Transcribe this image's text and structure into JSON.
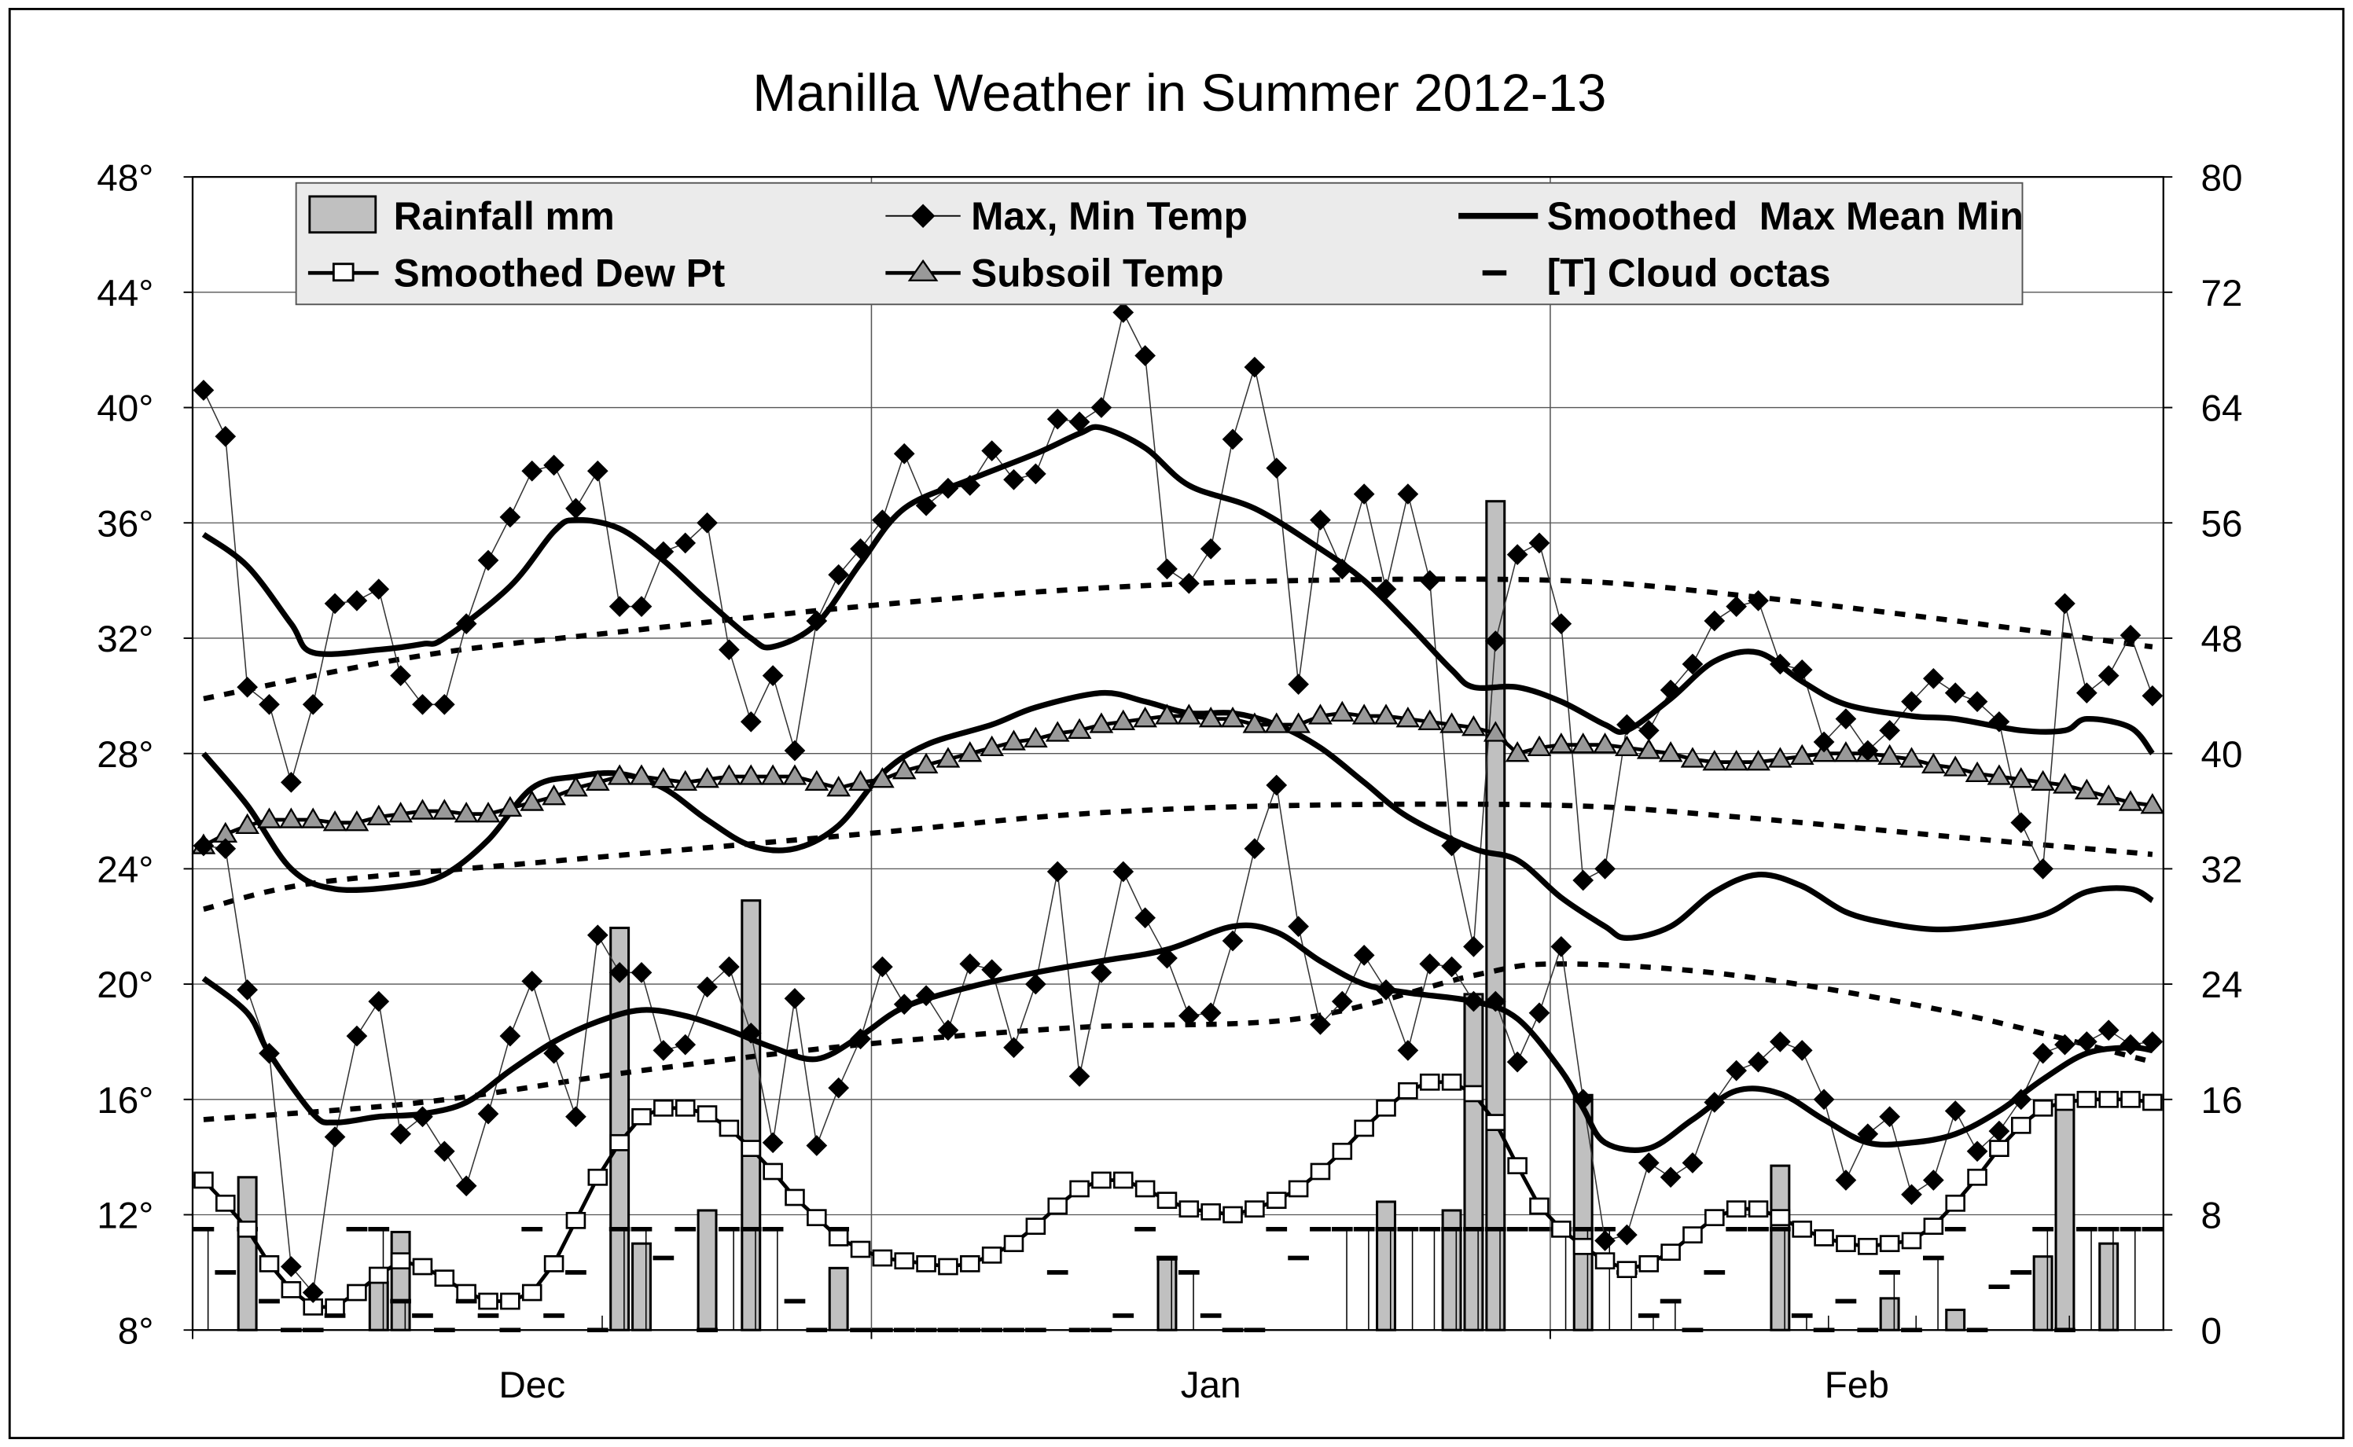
{
  "chart_data": {
    "type": "line",
    "title": "Manilla Weather in Summer 2012-13",
    "left_axis": {
      "ticks": [
        "8°",
        "12°",
        "16°",
        "20°",
        "24°",
        "28°",
        "32°",
        "36°",
        "40°",
        "44°",
        "48°"
      ],
      "values": [
        8,
        12,
        16,
        20,
        24,
        28,
        32,
        36,
        40,
        44,
        48
      ],
      "range": [
        8,
        48
      ]
    },
    "right_axis": {
      "ticks": [
        "0",
        "8",
        "16",
        "24",
        "32",
        "40",
        "48",
        "56",
        "64",
        "72",
        "80"
      ],
      "values": [
        0,
        8,
        16,
        24,
        32,
        40,
        48,
        56,
        64,
        72,
        80
      ],
      "range": [
        0,
        80
      ]
    },
    "x_axis": {
      "months": [
        "Dec",
        "Jan",
        "Feb"
      ],
      "month_start_days": [
        0,
        31,
        62
      ],
      "total_days": 90
    },
    "grid": true,
    "legend": {
      "placement": "top",
      "items": [
        "Rainfall mm",
        "Max, Min Temp",
        "Smoothed  Max Mean Min",
        "Smoothed Dew Pt",
        "Subsoil Temp",
        "[T] Cloud octas"
      ]
    },
    "series": {
      "max_temp": [
        40.6,
        39.0,
        30.3,
        29.7,
        27.0,
        29.7,
        33.2,
        33.3,
        33.7,
        30.7,
        29.7,
        29.7,
        32.5,
        34.7,
        36.2,
        37.8,
        38.0,
        36.5,
        37.8,
        33.1,
        33.1,
        35.0,
        35.3,
        36.0,
        31.6,
        29.1,
        30.7,
        28.1,
        32.6,
        34.2,
        35.1,
        36.1,
        38.4,
        36.6,
        37.2,
        37.3,
        38.5,
        37.5,
        37.7,
        39.6,
        39.5,
        40.0,
        43.3,
        41.8,
        34.4,
        33.9,
        35.1,
        38.9,
        41.4,
        37.9,
        30.4,
        36.1,
        34.4,
        37.0,
        33.7,
        37.0,
        34.0,
        24.8,
        21.3,
        31.9,
        34.9,
        35.3,
        32.5,
        23.6,
        24.0,
        29.0,
        28.8,
        30.2,
        31.1,
        32.6,
        33.1,
        33.3,
        31.1,
        30.9,
        28.4,
        29.2,
        28.1,
        28.8,
        29.8,
        30.6,
        30.1,
        29.8,
        29.1,
        25.6,
        24.0,
        33.2,
        30.1,
        30.7,
        32.1,
        30.0
      ],
      "min_temp": [
        24.8,
        24.7,
        19.8,
        17.6,
        10.2,
        9.3,
        14.7,
        18.2,
        19.4,
        14.8,
        15.4,
        14.2,
        13.0,
        15.5,
        18.2,
        20.1,
        17.6,
        15.4,
        21.7,
        20.4,
        20.4,
        17.7,
        17.9,
        19.9,
        20.6,
        18.3,
        14.5,
        19.5,
        14.4,
        16.4,
        18.1,
        20.6,
        19.3,
        19.6,
        18.4,
        20.7,
        20.5,
        17.8,
        20.0,
        23.9,
        16.8,
        20.4,
        23.9,
        22.3,
        20.9,
        18.9,
        19.0,
        21.5,
        24.7,
        26.9,
        22.0,
        18.6,
        19.4,
        21.0,
        19.8,
        17.7,
        20.7,
        20.6,
        19.4,
        19.4,
        17.3,
        19.0,
        21.3,
        16.0,
        11.1,
        11.3,
        13.8,
        13.3,
        13.8,
        15.9,
        17.0,
        17.3,
        18.0,
        17.7,
        16.0,
        13.2,
        14.8,
        15.4,
        12.7,
        13.2,
        15.6,
        14.2,
        14.9,
        16.0,
        17.6,
        17.9,
        18.0,
        18.4,
        17.9,
        18.0
      ],
      "smoothed_max": [
        [
          0,
          35.6
        ],
        [
          2,
          34.5
        ],
        [
          4,
          32.5
        ],
        [
          5,
          31.5
        ],
        [
          8,
          31.6
        ],
        [
          10,
          31.8
        ],
        [
          11,
          32.0
        ],
        [
          14,
          33.8
        ],
        [
          16,
          35.7
        ],
        [
          17,
          36.1
        ],
        [
          19,
          35.8
        ],
        [
          21,
          34.7
        ],
        [
          23,
          33.3
        ],
        [
          25,
          32.0
        ],
        [
          26,
          31.7
        ],
        [
          28,
          32.5
        ],
        [
          30,
          34.6
        ],
        [
          32,
          36.5
        ],
        [
          35,
          37.5
        ],
        [
          38,
          38.4
        ],
        [
          40,
          39.1
        ],
        [
          41,
          39.3
        ],
        [
          43,
          38.6
        ],
        [
          45,
          37.3
        ],
        [
          48,
          36.5
        ],
        [
          51,
          35.1
        ],
        [
          53,
          34.0
        ],
        [
          55,
          32.5
        ],
        [
          57,
          30.9
        ],
        [
          58,
          30.3
        ],
        [
          60,
          30.3
        ],
        [
          62,
          29.8
        ],
        [
          64,
          29.0
        ],
        [
          65,
          28.8
        ],
        [
          67,
          29.9
        ],
        [
          69,
          31.2
        ],
        [
          71,
          31.5
        ],
        [
          73,
          30.5
        ],
        [
          75,
          29.7
        ],
        [
          78,
          29.3
        ],
        [
          80,
          29.2
        ],
        [
          83,
          28.8
        ],
        [
          85,
          28.8
        ],
        [
          86,
          29.2
        ],
        [
          88,
          28.9
        ],
        [
          89,
          28.0
        ]
      ],
      "smoothed_mean": [
        [
          0,
          28.0
        ],
        [
          2,
          26.2
        ],
        [
          4,
          24.0
        ],
        [
          6,
          23.3
        ],
        [
          9,
          23.4
        ],
        [
          11,
          23.8
        ],
        [
          13,
          25.0
        ],
        [
          15,
          26.8
        ],
        [
          17,
          27.2
        ],
        [
          19,
          27.3
        ],
        [
          21,
          26.8
        ],
        [
          23,
          25.7
        ],
        [
          25,
          24.8
        ],
        [
          27,
          24.7
        ],
        [
          29,
          25.5
        ],
        [
          31,
          27.3
        ],
        [
          33,
          28.3
        ],
        [
          36,
          29.0
        ],
        [
          38,
          29.6
        ],
        [
          41,
          30.1
        ],
        [
          43,
          29.8
        ],
        [
          45,
          29.4
        ],
        [
          47,
          29.4
        ],
        [
          49,
          29.0
        ],
        [
          51,
          28.2
        ],
        [
          53,
          27.0
        ],
        [
          55,
          25.8
        ],
        [
          58,
          24.7
        ],
        [
          60,
          24.3
        ],
        [
          62,
          23.0
        ],
        [
          64,
          22.0
        ],
        [
          65,
          21.6
        ],
        [
          67,
          22.0
        ],
        [
          69,
          23.2
        ],
        [
          71,
          23.8
        ],
        [
          73,
          23.4
        ],
        [
          75,
          22.5
        ],
        [
          77,
          22.1
        ],
        [
          79,
          21.9
        ],
        [
          81,
          22.0
        ],
        [
          84,
          22.4
        ],
        [
          86,
          23.2
        ],
        [
          88,
          23.3
        ],
        [
          89,
          22.9
        ]
      ],
      "smoothed_min": [
        [
          0,
          20.2
        ],
        [
          2,
          19.0
        ],
        [
          3,
          17.6
        ],
        [
          5,
          15.5
        ],
        [
          6,
          15.2
        ],
        [
          8,
          15.4
        ],
        [
          10,
          15.5
        ],
        [
          12,
          15.9
        ],
        [
          14,
          17.0
        ],
        [
          16,
          18.0
        ],
        [
          18,
          18.7
        ],
        [
          20,
          19.1
        ],
        [
          22,
          18.9
        ],
        [
          24,
          18.4
        ],
        [
          26,
          17.8
        ],
        [
          28,
          17.4
        ],
        [
          30,
          18.2
        ],
        [
          32,
          19.2
        ],
        [
          35,
          19.9
        ],
        [
          38,
          20.4
        ],
        [
          41,
          20.8
        ],
        [
          44,
          21.2
        ],
        [
          47,
          22.0
        ],
        [
          49,
          21.8
        ],
        [
          51,
          20.8
        ],
        [
          53,
          20.0
        ],
        [
          55,
          19.7
        ],
        [
          58,
          19.4
        ],
        [
          60,
          18.8
        ],
        [
          62,
          17.0
        ],
        [
          63,
          15.7
        ],
        [
          64,
          14.5
        ],
        [
          66,
          14.3
        ],
        [
          68,
          15.3
        ],
        [
          70,
          16.3
        ],
        [
          72,
          16.2
        ],
        [
          74,
          15.3
        ],
        [
          76,
          14.5
        ],
        [
          78,
          14.5
        ],
        [
          80,
          14.8
        ],
        [
          82,
          15.6
        ],
        [
          84,
          16.7
        ],
        [
          86,
          17.6
        ],
        [
          88,
          17.8
        ],
        [
          89,
          17.7
        ]
      ],
      "normal_max_dotted": [
        [
          0,
          29.9
        ],
        [
          10,
          31.4
        ],
        [
          20,
          32.3
        ],
        [
          30,
          33.1
        ],
        [
          40,
          33.7
        ],
        [
          50,
          34.0
        ],
        [
          62,
          34.0
        ],
        [
          70,
          33.5
        ],
        [
          80,
          32.6
        ],
        [
          89,
          31.7
        ]
      ],
      "normal_mean_dotted": [
        [
          0,
          22.6
        ],
        [
          5,
          23.5
        ],
        [
          15,
          24.2
        ],
        [
          30,
          25.2
        ],
        [
          40,
          25.9
        ],
        [
          50,
          26.2
        ],
        [
          62,
          26.2
        ],
        [
          70,
          25.8
        ],
        [
          80,
          25.1
        ],
        [
          89,
          24.5
        ]
      ],
      "normal_min_dotted": [
        [
          0,
          15.3
        ],
        [
          10,
          15.9
        ],
        [
          20,
          17.0
        ],
        [
          30,
          17.9
        ],
        [
          40,
          18.5
        ],
        [
          50,
          18.8
        ],
        [
          58,
          20.3
        ],
        [
          62,
          20.7
        ],
        [
          70,
          20.3
        ],
        [
          80,
          19.0
        ],
        [
          89,
          17.3
        ]
      ],
      "subsoil_temp": [
        24.8,
        25.2,
        25.5,
        25.7,
        25.7,
        25.7,
        25.6,
        25.6,
        25.8,
        25.9,
        26.0,
        26.0,
        25.9,
        25.9,
        26.1,
        26.3,
        26.5,
        26.8,
        27.0,
        27.2,
        27.2,
        27.1,
        27.0,
        27.1,
        27.2,
        27.2,
        27.2,
        27.2,
        27.0,
        26.8,
        27.0,
        27.1,
        27.4,
        27.6,
        27.8,
        28.0,
        28.2,
        28.4,
        28.5,
        28.7,
        28.8,
        29.0,
        29.1,
        29.2,
        29.3,
        29.3,
        29.2,
        29.2,
        29.0,
        29.0,
        29.0,
        29.3,
        29.4,
        29.3,
        29.3,
        29.2,
        29.1,
        29.0,
        28.9,
        28.7,
        28.0,
        28.2,
        28.3,
        28.3,
        28.3,
        28.2,
        28.1,
        28.0,
        27.8,
        27.7,
        27.7,
        27.7,
        27.8,
        27.9,
        28.0,
        28.0,
        28.0,
        27.9,
        27.8,
        27.6,
        27.5,
        27.3,
        27.2,
        27.1,
        27.0,
        26.9,
        26.7,
        26.5,
        26.3,
        26.2
      ],
      "smoothed_dew_pt": [
        13.2,
        12.4,
        11.5,
        10.3,
        9.4,
        8.8,
        8.8,
        9.3,
        9.9,
        10.4,
        10.2,
        9.8,
        9.3,
        9.0,
        9.0,
        9.3,
        10.3,
        11.8,
        13.3,
        14.5,
        15.4,
        15.7,
        15.7,
        15.5,
        15.0,
        14.3,
        13.5,
        12.6,
        11.9,
        11.2,
        10.8,
        10.5,
        10.4,
        10.3,
        10.2,
        10.3,
        10.6,
        11.0,
        11.6,
        12.3,
        12.9,
        13.2,
        13.2,
        12.9,
        12.5,
        12.2,
        12.1,
        12.0,
        12.2,
        12.5,
        12.9,
        13.5,
        14.2,
        15.0,
        15.7,
        16.3,
        16.6,
        16.6,
        16.2,
        15.2,
        13.7,
        12.3,
        11.5,
        10.9,
        10.4,
        10.1,
        10.3,
        10.7,
        11.3,
        11.9,
        12.2,
        12.2,
        11.9,
        11.5,
        11.2,
        11.0,
        10.9,
        11.0,
        11.1,
        11.6,
        12.4,
        13.3,
        14.3,
        15.1,
        15.7,
        15.9,
        16.0,
        16.0,
        16.0,
        15.9
      ],
      "rainfall_mm": [
        [
          2,
          10.6
        ],
        [
          8,
          3.3
        ],
        [
          9,
          6.8
        ],
        [
          19,
          27.9
        ],
        [
          20,
          6.0
        ],
        [
          23,
          8.3
        ],
        [
          25,
          29.8
        ],
        [
          29,
          4.3
        ],
        [
          44,
          4.9
        ],
        [
          54,
          8.9
        ],
        [
          57,
          8.3
        ],
        [
          58,
          23.3
        ],
        [
          59,
          57.5
        ],
        [
          63,
          16.3
        ],
        [
          72,
          11.4
        ],
        [
          77,
          2.2
        ],
        [
          80,
          1.4
        ],
        [
          84,
          5.1
        ],
        [
          85,
          16.3
        ],
        [
          87,
          6.0
        ]
      ],
      "cloud_octas": [
        7,
        4,
        7,
        2,
        0,
        0,
        1,
        7,
        7,
        2,
        1,
        0,
        2,
        1,
        0,
        7,
        1,
        4,
        0,
        7,
        7,
        5,
        7,
        0,
        7,
        7,
        7,
        2,
        0,
        7,
        0,
        0,
        0,
        0,
        0,
        0,
        0,
        0,
        0,
        4,
        0,
        0,
        1,
        7,
        5,
        4,
        1,
        0,
        0,
        7,
        5,
        7,
        7,
        7,
        7,
        7,
        7,
        7,
        7,
        7,
        7,
        7,
        7,
        7,
        7,
        4,
        1,
        2,
        0,
        4,
        7,
        7,
        7,
        1,
        0,
        2,
        0,
        4,
        0,
        5,
        7,
        0,
        3,
        4,
        7,
        0,
        7,
        7,
        7,
        7
      ],
      "thunder_days": [
        0,
        8,
        9,
        18,
        19,
        20,
        24,
        25,
        26,
        44,
        45,
        52,
        53,
        54,
        55,
        56,
        57,
        58,
        59,
        62,
        63,
        64,
        65,
        66,
        67,
        72,
        73,
        74,
        77,
        78,
        79,
        84,
        85,
        86,
        87,
        88
      ]
    }
  }
}
